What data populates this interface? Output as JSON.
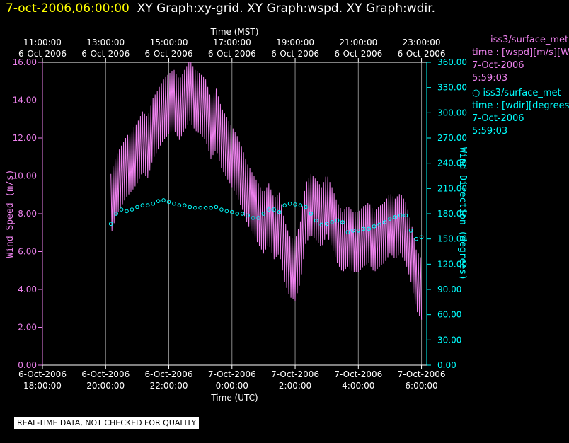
{
  "header": {
    "timestamp": "7-oct-2006,06:00:00",
    "graphs": "XY Graph:xy-grid.  XY Graph:wspd.  XY Graph:wdir."
  },
  "legend": [
    {
      "name": "iss3/surface_met",
      "marker": "line",
      "lines": [
        "time : [wspd][m/s][Wind Speed]",
        "7-Oct-2006",
        "5:59:03"
      ],
      "color": "#ee82ee"
    },
    {
      "name": "iss3/surface_met",
      "marker": "circle",
      "lines": [
        "time : [wdir][degrees][Wind Direction]",
        "7-Oct-2006",
        "5:59:03"
      ],
      "color": "#00ffff"
    }
  ],
  "disclaimer": "REAL-TIME DATA, NOT CHECKED FOR QUALITY",
  "colors": {
    "speed": "#ee82ee",
    "direction": "#00ffff",
    "grid": "#888888",
    "axis": "#ffffff",
    "timestamp": "#ffff00"
  },
  "chart_data": {
    "type": "line",
    "x_unit": "UTC time",
    "x_range": [
      "2006-10-06 18:00:00",
      "2006-10-07 06:10:00"
    ],
    "top_axis": {
      "label": "Time (MST)",
      "ticks": [
        {
          "utc": "2006-10-06 18:00:00",
          "line1": "11:00:00",
          "line2": "6-Oct-2006"
        },
        {
          "utc": "2006-10-06 20:00:00",
          "line1": "13:00:00",
          "line2": "6-Oct-2006"
        },
        {
          "utc": "2006-10-06 22:00:00",
          "line1": "15:00:00",
          "line2": "6-Oct-2006"
        },
        {
          "utc": "2006-10-07 00:00:00",
          "line1": "17:00:00",
          "line2": "6-Oct-2006"
        },
        {
          "utc": "2006-10-07 02:00:00",
          "line1": "19:00:00",
          "line2": "6-Oct-2006"
        },
        {
          "utc": "2006-10-07 04:00:00",
          "line1": "21:00:00",
          "line2": "6-Oct-2006"
        },
        {
          "utc": "2006-10-07 06:00:00",
          "line1": "23:00:00",
          "line2": "6-Oct-2006"
        }
      ]
    },
    "bottom_axis": {
      "label": "Time (UTC)",
      "ticks": [
        {
          "utc": "2006-10-06 18:00:00",
          "line1": "6-Oct-2006",
          "line2": "18:00:00"
        },
        {
          "utc": "2006-10-06 20:00:00",
          "line1": "6-Oct-2006",
          "line2": "20:00:00"
        },
        {
          "utc": "2006-10-06 22:00:00",
          "line1": "6-Oct-2006",
          "line2": "22:00:00"
        },
        {
          "utc": "2006-10-07 00:00:00",
          "line1": "7-Oct-2006",
          "line2": "0:00:00"
        },
        {
          "utc": "2006-10-07 02:00:00",
          "line1": "7-Oct-2006",
          "line2": "2:00:00"
        },
        {
          "utc": "2006-10-07 04:00:00",
          "line1": "7-Oct-2006",
          "line2": "4:00:00"
        },
        {
          "utc": "2006-10-07 06:00:00",
          "line1": "7-Oct-2006",
          "line2": "6:00:00"
        }
      ]
    },
    "left_axis": {
      "label": "Wind Speed (m/s)",
      "range": [
        0,
        16
      ],
      "ticks": [
        "0.00",
        "2.00",
        "4.00",
        "6.00",
        "8.00",
        "10.00",
        "12.00",
        "14.00",
        "16.00"
      ]
    },
    "right_axis": {
      "label": "Wind Direction (degrees)",
      "range": [
        0,
        360
      ],
      "ticks": [
        "0.00",
        "30.00",
        "60.00",
        "90.00",
        "120.00",
        "150.00",
        "180.00",
        "210.00",
        "240.00",
        "270.00",
        "300.00",
        "330.00",
        "360.00"
      ]
    },
    "grid": "vertical lines at major time ticks",
    "series": [
      {
        "name": "iss3/surface_met",
        "quantity": "wspd",
        "axis": "left",
        "style": "line",
        "points": [
          [
            "2006-10-06 20:10",
            8.5
          ],
          [
            "2006-10-06 20:20",
            9.5
          ],
          [
            "2006-10-06 20:30",
            10.0
          ],
          [
            "2006-10-06 20:40",
            10.5
          ],
          [
            "2006-10-06 20:50",
            10.8
          ],
          [
            "2006-10-06 21:00",
            11.2
          ],
          [
            "2006-10-06 21:10",
            11.8
          ],
          [
            "2006-10-06 21:20",
            11.5
          ],
          [
            "2006-10-06 21:30",
            12.5
          ],
          [
            "2006-10-06 21:40",
            13.0
          ],
          [
            "2006-10-06 21:50",
            13.5
          ],
          [
            "2006-10-06 22:00",
            13.8
          ],
          [
            "2006-10-06 22:10",
            14.0
          ],
          [
            "2006-10-06 22:20",
            13.5
          ],
          [
            "2006-10-06 22:30",
            14.0
          ],
          [
            "2006-10-06 22:40",
            14.5
          ],
          [
            "2006-10-06 22:50",
            14.0
          ],
          [
            "2006-10-06 23:00",
            13.8
          ],
          [
            "2006-10-06 23:10",
            13.5
          ],
          [
            "2006-10-06 23:20",
            12.5
          ],
          [
            "2006-10-06 23:30",
            13.0
          ],
          [
            "2006-10-06 23:40",
            12.0
          ],
          [
            "2006-10-06 23:50",
            11.5
          ],
          [
            "2006-10-07 00:00",
            11.0
          ],
          [
            "2006-10-07 00:10",
            10.5
          ],
          [
            "2006-10-07 00:20",
            9.8
          ],
          [
            "2006-10-07 00:30",
            9.0
          ],
          [
            "2006-10-07 00:40",
            8.5
          ],
          [
            "2006-10-07 00:50",
            8.0
          ],
          [
            "2006-10-07 01:00",
            7.5
          ],
          [
            "2006-10-07 01:10",
            8.0
          ],
          [
            "2006-10-07 01:20",
            7.2
          ],
          [
            "2006-10-07 01:30",
            7.5
          ],
          [
            "2006-10-07 01:40",
            6.0
          ],
          [
            "2006-10-07 01:50",
            5.2
          ],
          [
            "2006-10-07 02:00",
            5.0
          ],
          [
            "2006-10-07 02:10",
            6.0
          ],
          [
            "2006-10-07 02:20",
            8.0
          ],
          [
            "2006-10-07 02:30",
            8.5
          ],
          [
            "2006-10-07 02:40",
            8.2
          ],
          [
            "2006-10-07 02:50",
            7.8
          ],
          [
            "2006-10-07 03:00",
            8.5
          ],
          [
            "2006-10-07 03:10",
            7.8
          ],
          [
            "2006-10-07 03:20",
            7.0
          ],
          [
            "2006-10-07 03:30",
            6.5
          ],
          [
            "2006-10-07 03:40",
            6.8
          ],
          [
            "2006-10-07 03:50",
            6.5
          ],
          [
            "2006-10-07 04:00",
            6.5
          ],
          [
            "2006-10-07 04:10",
            6.8
          ],
          [
            "2006-10-07 04:20",
            7.0
          ],
          [
            "2006-10-07 04:30",
            6.5
          ],
          [
            "2006-10-07 04:40",
            6.8
          ],
          [
            "2006-10-07 04:50",
            7.0
          ],
          [
            "2006-10-07 05:00",
            7.5
          ],
          [
            "2006-10-07 05:10",
            7.2
          ],
          [
            "2006-10-07 05:20",
            7.5
          ],
          [
            "2006-10-07 05:30",
            7.0
          ],
          [
            "2006-10-07 05:40",
            6.0
          ],
          [
            "2006-10-07 05:50",
            4.5
          ],
          [
            "2006-10-07 06:00",
            4.0
          ]
        ]
      },
      {
        "name": "iss3/surface_met",
        "quantity": "wdir",
        "axis": "right",
        "style": "circles",
        "points": [
          [
            "2006-10-06 20:10",
            168
          ],
          [
            "2006-10-06 20:20",
            180
          ],
          [
            "2006-10-06 20:30",
            185
          ],
          [
            "2006-10-06 20:40",
            183
          ],
          [
            "2006-10-06 20:50",
            185
          ],
          [
            "2006-10-06 21:00",
            188
          ],
          [
            "2006-10-06 21:10",
            190
          ],
          [
            "2006-10-06 21:20",
            190
          ],
          [
            "2006-10-06 21:30",
            192
          ],
          [
            "2006-10-06 21:40",
            195
          ],
          [
            "2006-10-06 21:50",
            196
          ],
          [
            "2006-10-06 22:00",
            194
          ],
          [
            "2006-10-06 22:10",
            192
          ],
          [
            "2006-10-06 22:20",
            190
          ],
          [
            "2006-10-06 22:30",
            190
          ],
          [
            "2006-10-06 22:40",
            188
          ],
          [
            "2006-10-06 22:50",
            187
          ],
          [
            "2006-10-06 23:00",
            187
          ],
          [
            "2006-10-06 23:10",
            187
          ],
          [
            "2006-10-06 23:20",
            187
          ],
          [
            "2006-10-06 23:30",
            188
          ],
          [
            "2006-10-06 23:40",
            185
          ],
          [
            "2006-10-06 23:50",
            183
          ],
          [
            "2006-10-07 00:00",
            182
          ],
          [
            "2006-10-07 00:10",
            180
          ],
          [
            "2006-10-07 00:20",
            180
          ],
          [
            "2006-10-07 00:30",
            178
          ],
          [
            "2006-10-07 00:40",
            175
          ],
          [
            "2006-10-07 00:50",
            175
          ],
          [
            "2006-10-07 01:00",
            180
          ],
          [
            "2006-10-07 01:10",
            185
          ],
          [
            "2006-10-07 01:20",
            185
          ],
          [
            "2006-10-07 01:30",
            182
          ],
          [
            "2006-10-07 01:40",
            190
          ],
          [
            "2006-10-07 01:50",
            192
          ],
          [
            "2006-10-07 02:00",
            191
          ],
          [
            "2006-10-07 02:10",
            190
          ],
          [
            "2006-10-07 02:20",
            188
          ],
          [
            "2006-10-07 02:30",
            180
          ],
          [
            "2006-10-07 02:40",
            172
          ],
          [
            "2006-10-07 02:50",
            167
          ],
          [
            "2006-10-07 03:00",
            168
          ],
          [
            "2006-10-07 03:10",
            170
          ],
          [
            "2006-10-07 03:20",
            172
          ],
          [
            "2006-10-07 03:30",
            170
          ],
          [
            "2006-10-07 03:40",
            158
          ],
          [
            "2006-10-07 03:50",
            160
          ],
          [
            "2006-10-07 04:00",
            160
          ],
          [
            "2006-10-07 04:10",
            162
          ],
          [
            "2006-10-07 04:20",
            162
          ],
          [
            "2006-10-07 04:30",
            165
          ],
          [
            "2006-10-07 04:40",
            167
          ],
          [
            "2006-10-07 04:50",
            170
          ],
          [
            "2006-10-07 05:00",
            174
          ],
          [
            "2006-10-07 05:10",
            176
          ],
          [
            "2006-10-07 05:20",
            178
          ],
          [
            "2006-10-07 05:30",
            178
          ],
          [
            "2006-10-07 05:40",
            160
          ],
          [
            "2006-10-07 05:50",
            150
          ],
          [
            "2006-10-07 06:00",
            152
          ]
        ]
      }
    ]
  }
}
